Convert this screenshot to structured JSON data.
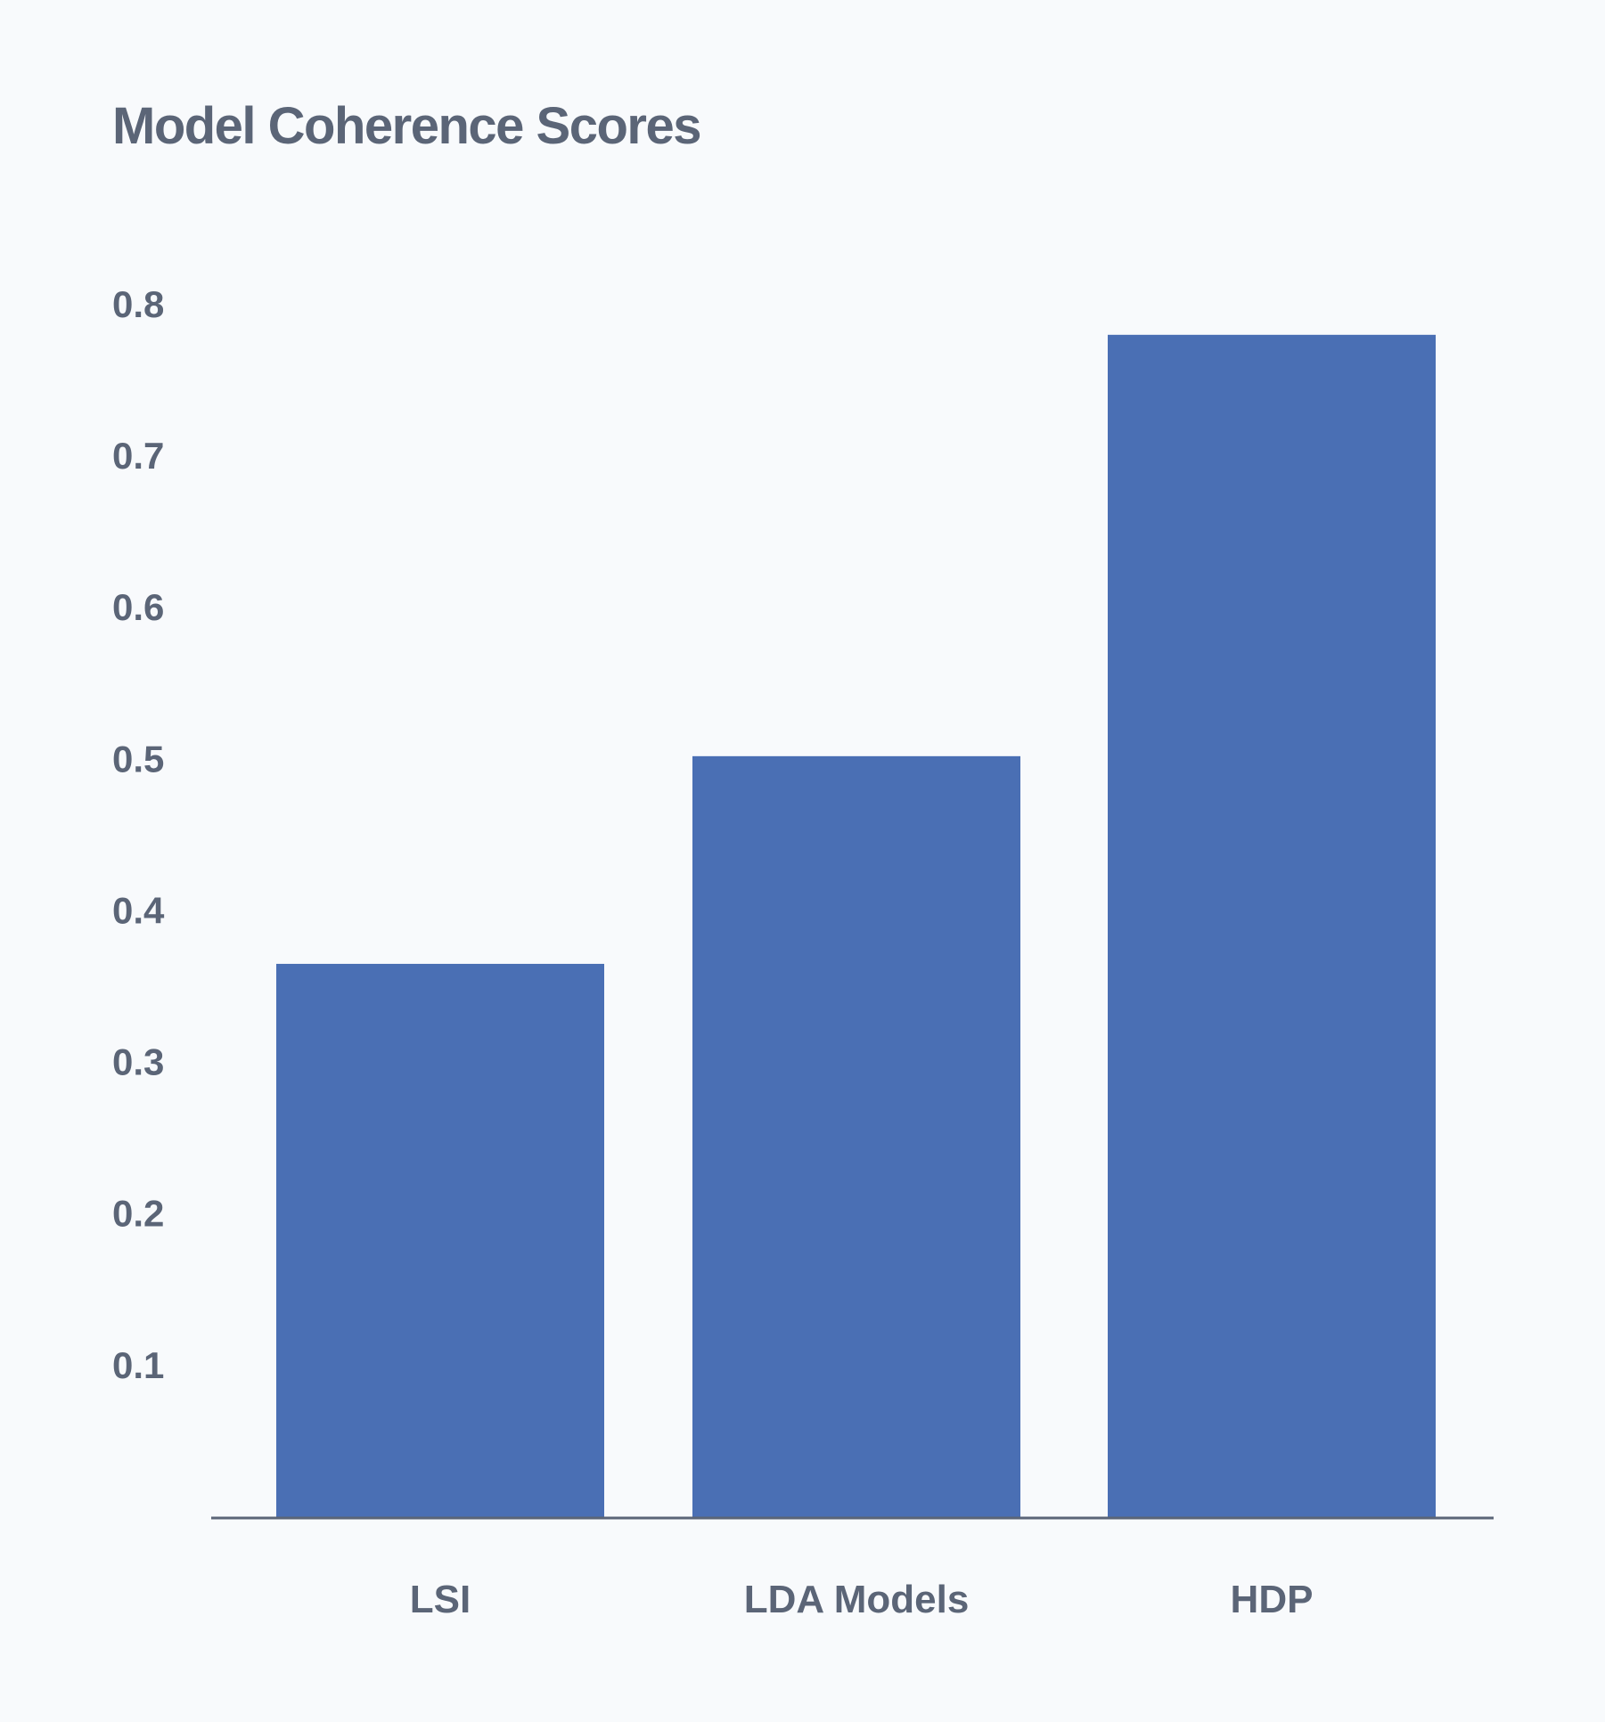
{
  "chart_data": {
    "type": "bar",
    "title": "Model Coherence Scores",
    "xlabel": "",
    "ylabel": "",
    "categories": [
      "LSI",
      "LDA Models",
      "HDP"
    ],
    "values": [
      0.365,
      0.502,
      0.78
    ],
    "ylim": [
      0,
      0.8
    ],
    "yticks": [
      0.1,
      0.2,
      0.3,
      0.4,
      0.5,
      0.6,
      0.7,
      0.8
    ],
    "ytick_labels": [
      "0.1",
      "0.2",
      "0.3",
      "0.4",
      "0.5",
      "0.6",
      "0.7",
      "0.8"
    ],
    "grid": false,
    "legend": "none",
    "bar_color": "#4a6fb4",
    "axis_color": "#5b6577",
    "text_color": "#5b6577",
    "background": "#f8fafc"
  }
}
